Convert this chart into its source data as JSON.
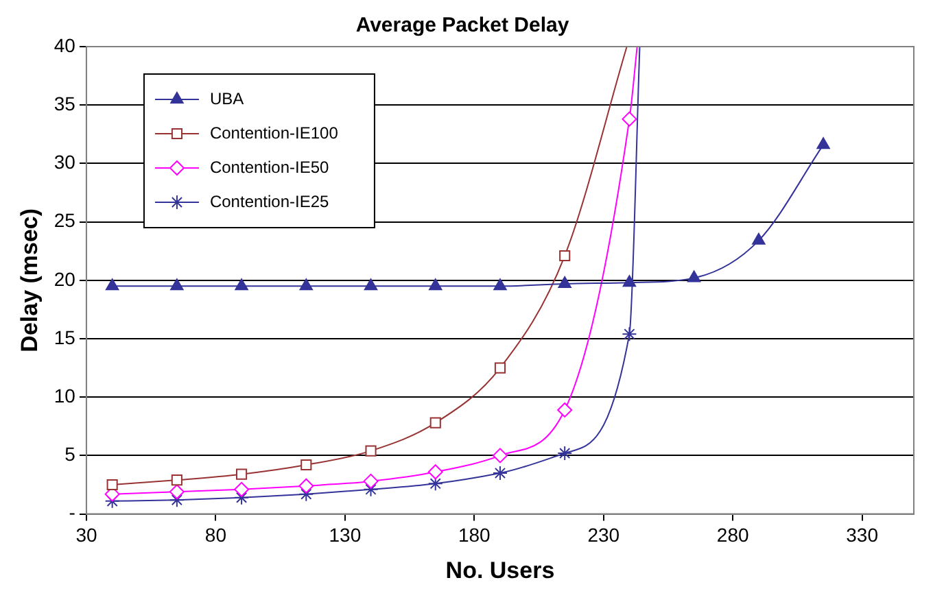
{
  "chart_data": {
    "type": "line",
    "title": "Average Packet Delay",
    "xlabel": "No. Users",
    "ylabel": "Delay (msec)",
    "xlim": [
      30,
      350
    ],
    "xticks": [
      30,
      80,
      130,
      180,
      230,
      280,
      330
    ],
    "ylim": [
      0,
      40
    ],
    "yticks": [
      {
        "value": 0,
        "label": "-"
      },
      5,
      10,
      15,
      20,
      25,
      30,
      35,
      40
    ],
    "grid": "y",
    "legend": "top left",
    "series": [
      {
        "name": "UBA",
        "color": "#333399",
        "marker": "triangle",
        "x": [
          40,
          65,
          90,
          115,
          140,
          165,
          190,
          215,
          240,
          265,
          290,
          315
        ],
        "values": [
          19.5,
          19.5,
          19.5,
          19.5,
          19.5,
          19.5,
          19.5,
          19.7,
          19.8,
          20.2,
          23.4,
          31.6
        ]
      },
      {
        "name": "Contention-IE100",
        "color": "#993333",
        "marker": "square",
        "x": [
          40,
          65,
          90,
          115,
          140,
          165,
          190,
          215,
          239
        ],
        "values": [
          2.5,
          2.9,
          3.4,
          4.2,
          5.4,
          7.8,
          12.5,
          22.1,
          40
        ]
      },
      {
        "name": "Contention-IE50",
        "color": "#ff00ff",
        "marker": "diamond",
        "x": [
          40,
          65,
          90,
          115,
          140,
          165,
          190,
          215,
          240,
          243
        ],
        "values": [
          1.7,
          1.9,
          2.1,
          2.4,
          2.8,
          3.6,
          5.0,
          8.9,
          33.8,
          40
        ]
      },
      {
        "name": "Contention-IE25",
        "color": "#333399",
        "marker": "cross",
        "x": [
          40,
          65,
          90,
          115,
          140,
          165,
          190,
          215,
          240,
          244
        ],
        "values": [
          1.1,
          1.2,
          1.4,
          1.7,
          2.1,
          2.6,
          3.5,
          5.2,
          15.4,
          40
        ]
      }
    ]
  }
}
